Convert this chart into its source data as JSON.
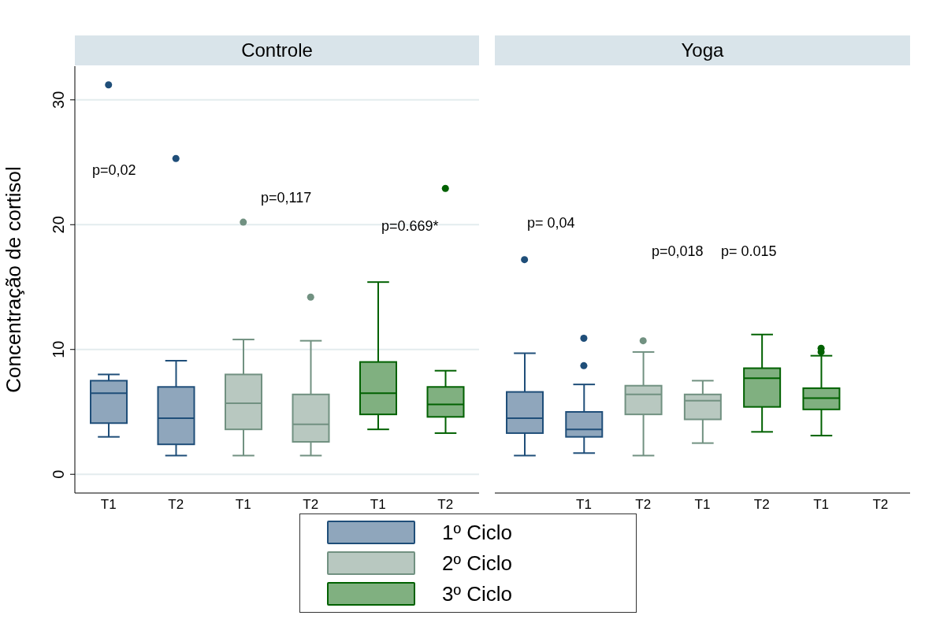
{
  "chart_data": [
    {
      "type": "box",
      "title": "Controle",
      "ylabel": "Concentração de cortisol",
      "categories": [
        "T1",
        "T2",
        "T1",
        "T2",
        "T1",
        "T2"
      ],
      "ylim": [
        -1.5,
        32.7
      ],
      "yticks": [
        0,
        10,
        20,
        30
      ],
      "grid": "y",
      "legend": "bottom",
      "marker": "circle",
      "series": [
        {
          "name": "1º Ciclo",
          "color": "#1f4e79",
          "boxes": [
            {
              "low": 3.0,
              "q1": 4.1,
              "median": 6.5,
              "q3": 7.5,
              "high": 8.0,
              "outliers": [
                31.2
              ]
            },
            {
              "low": 1.5,
              "q1": 2.4,
              "median": 4.5,
              "q3": 7.0,
              "high": 9.1,
              "outliers": [
                25.3
              ]
            },
            null,
            null,
            null,
            null
          ]
        },
        {
          "name": "2º Ciclo",
          "color": "#719181",
          "boxes": [
            null,
            null,
            {
              "low": 1.5,
              "q1": 3.6,
              "median": 5.7,
              "q3": 8.0,
              "high": 10.8,
              "outliers": [
                20.2
              ]
            },
            {
              "low": 1.5,
              "q1": 2.6,
              "median": 4.0,
              "q3": 6.4,
              "high": 10.7,
              "outliers": [
                14.2
              ]
            },
            null,
            null
          ]
        },
        {
          "name": "3º Ciclo",
          "color": "#016101",
          "boxes": [
            null,
            null,
            null,
            null,
            {
              "low": 3.6,
              "q1": 4.8,
              "median": 6.5,
              "q3": 9.0,
              "high": 15.4
            },
            {
              "low": 3.3,
              "q1": 4.6,
              "median": 5.6,
              "q3": 7.0,
              "high": 8.3,
              "outliers": [
                22.9
              ]
            }
          ]
        }
      ],
      "annotations": [
        "p=0,02",
        "p=0,117",
        "p=0.669*"
      ]
    },
    {
      "type": "box",
      "title": "Yoga",
      "categories": [
        null,
        "T1",
        "T2",
        "T1",
        "T2",
        "T1",
        "T2"
      ],
      "ylim": [
        -1.5,
        30
      ],
      "yticks": [
        0,
        10,
        20,
        30
      ],
      "grid": "y",
      "tick_labels": "x",
      "marker": "circle",
      "series": [
        {
          "color": "#1f4e79",
          "boxes": [
            {
              "low": 1.5,
              "q1": 3.3,
              "median": 4.5,
              "q3": 6.6,
              "high": 9.7,
              "outliers": [
                17.2
              ]
            },
            {
              "low": 1.7,
              "q1": 3.0,
              "median": 3.6,
              "q3": 5.0,
              "high": 7.2,
              "outliers": [
                10.9,
                8.7
              ]
            },
            null,
            null,
            null,
            null,
            null
          ]
        },
        {
          "color": "#719181",
          "boxes": [
            null,
            null,
            {
              "low": 1.5,
              "q1": 4.8,
              "median": 6.4,
              "q3": 7.1,
              "high": 9.8,
              "outliers": [
                10.7
              ]
            },
            {
              "low": 2.5,
              "q1": 4.4,
              "median": 5.9,
              "q3": 6.4,
              "high": 7.5
            },
            null,
            null,
            null
          ]
        },
        {
          "color": "#016101",
          "boxes": [
            null,
            null,
            null,
            null,
            {
              "low": 3.4,
              "q1": 5.4,
              "median": 7.7,
              "q3": 8.5,
              "high": 11.2
            },
            {
              "low": 3.1,
              "q1": 5.2,
              "median": 6.1,
              "q3": 6.9,
              "high": 9.5,
              "outliers": [
                10.1,
                9.8
              ]
            },
            null
          ]
        }
      ],
      "annotations": [
        "p= 0,04",
        "p=0,018",
        "p= 0.015"
      ]
    }
  ]
}
